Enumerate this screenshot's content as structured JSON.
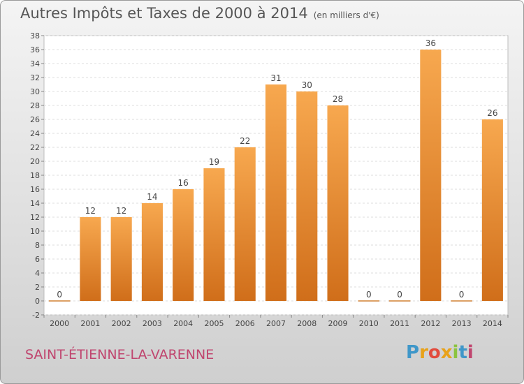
{
  "header": {
    "title": "Autres Impôts et Taxes de 2000 à 2014",
    "subtitle": "(en milliers d'€)"
  },
  "footer": {
    "commune": "SAINT-ÉTIENNE-LA-VARENNE",
    "logo_letters": [
      "P",
      "r",
      "o",
      "x",
      "i",
      "t",
      "i"
    ],
    "logo_colors": [
      "#3f97c9",
      "#e8a21a",
      "#e24b3d",
      "#e8a21a",
      "#8bc43f",
      "#3f97c9",
      "#c0466f"
    ]
  },
  "chart_data": {
    "type": "bar",
    "categories": [
      "2000",
      "2001",
      "2002",
      "2003",
      "2004",
      "2005",
      "2006",
      "2007",
      "2008",
      "2009",
      "2010",
      "2011",
      "2012",
      "2013",
      "2014"
    ],
    "values": [
      0,
      12,
      12,
      14,
      16,
      19,
      22,
      31,
      30,
      28,
      0,
      0,
      36,
      0,
      26
    ],
    "data_labels": [
      "0",
      "12",
      "12",
      "14",
      "16",
      "19",
      "22",
      "31",
      "30",
      "28",
      "0",
      "0",
      "36",
      "0",
      "26"
    ],
    "y_ticks": [
      "-2",
      "0",
      "2",
      "4",
      "6",
      "8",
      "10",
      "12",
      "14",
      "16",
      "18",
      "20",
      "22",
      "24",
      "26",
      "28",
      "30",
      "32",
      "34",
      "36",
      "38"
    ],
    "ylim": [
      -2,
      38
    ],
    "grid": true,
    "bar_color_top": "#f7a84f",
    "bar_color_bottom": "#d06e1a"
  }
}
